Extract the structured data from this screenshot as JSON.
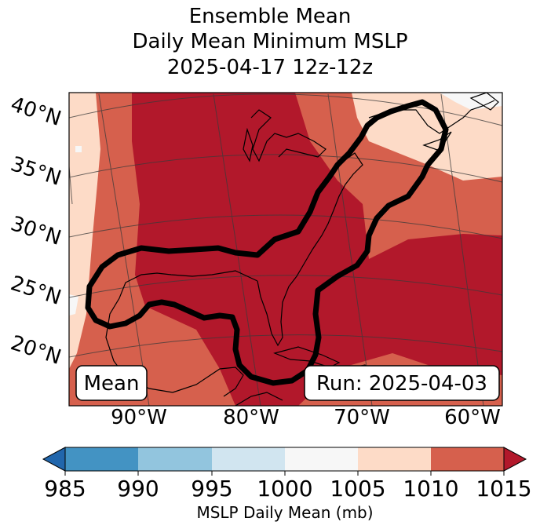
{
  "title": {
    "line1": "Ensemble Mean",
    "line2": "Daily Mean Minimum MSLP",
    "line3": "2025-04-17 12z-12z"
  },
  "map": {
    "lat_labels": [
      "40°N",
      "35°N",
      "30°N",
      "25°N",
      "20°N"
    ],
    "lon_labels": [
      "90°W",
      "80°W",
      "70°W",
      "60°W"
    ],
    "mean_box": "Mean",
    "run_box": "Run: 2025-04-03",
    "fill_colors": {
      "1000_1005": "#f7f7f7",
      "1005_1010": "#fddbc7",
      "1010_1015": "#d6604d",
      "gt_1015": "#b2182b"
    }
  },
  "colorbar": {
    "label": "MSLP Daily Mean (mb)",
    "ticks": [
      "985",
      "990",
      "995",
      "1000",
      "1005",
      "1010",
      "1015"
    ],
    "bins": [
      {
        "range": "<985",
        "color": "#2166ac"
      },
      {
        "range": "985-990",
        "color": "#4393c3"
      },
      {
        "range": "990-995",
        "color": "#92c5de"
      },
      {
        "range": "995-1000",
        "color": "#d1e5f0"
      },
      {
        "range": "1000-1005",
        "color": "#f7f7f7"
      },
      {
        "range": "1005-1010",
        "color": "#fddbc7"
      },
      {
        "range": "1010-1015",
        "color": "#d6604d"
      },
      {
        "range": ">1015",
        "color": "#b2182b"
      }
    ]
  }
}
